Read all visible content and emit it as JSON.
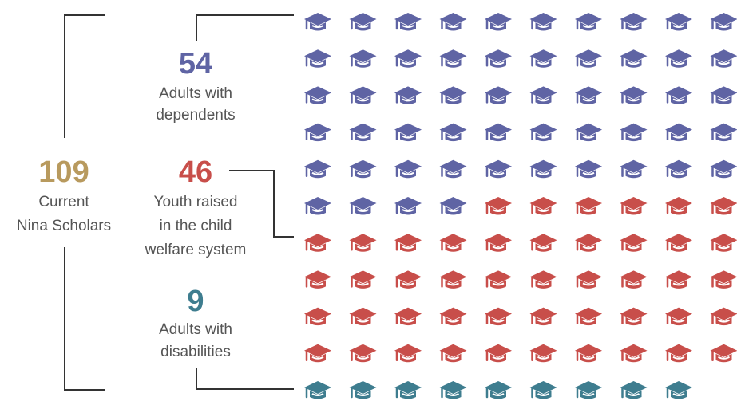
{
  "colors": {
    "total": "#B89A5E",
    "adults_dependents": "#5F64A4",
    "youth_welfare": "#C84E4A",
    "adults_disabilities": "#3E7D8F",
    "label_text": "#555555",
    "bracket": "#333333"
  },
  "icon": "graduation-cap-icon",
  "chart_data": {
    "type": "pictogram",
    "icons_per_row": 10,
    "total": {
      "value": "109",
      "label_line1": "Current",
      "label_line2": "Nina Scholars"
    },
    "categories": [
      {
        "value": "54",
        "count": 54,
        "color_key": "adults_dependents",
        "label_line1": "Adults with",
        "label_line2": "dependents"
      },
      {
        "value": "46",
        "count": 46,
        "color_key": "youth_welfare",
        "label_line1": "Youth raised",
        "label_line2": "in the child",
        "label_line3": "welfare system"
      },
      {
        "value": "9",
        "count": 9,
        "color_key": "adults_disabilities",
        "label_line1": "Adults with",
        "label_line2": "disabilities"
      }
    ]
  }
}
